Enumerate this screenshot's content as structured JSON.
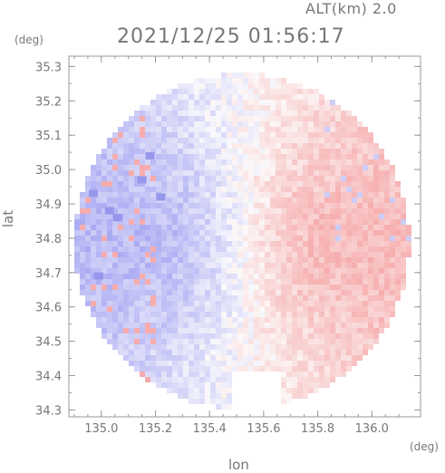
{
  "header": {
    "altitude": "ALT(km) 2.0",
    "datetime": "2021/12/25 01:56:17"
  },
  "units": {
    "y": "(deg)",
    "x": "(deg)"
  },
  "chart_data": {
    "type": "heatmap",
    "title": "",
    "xlabel": "lon",
    "ylabel": "lat",
    "xlim": [
      134.88,
      136.18
    ],
    "ylim": [
      34.28,
      35.33
    ],
    "x_ticks": [
      135.0,
      135.2,
      135.4,
      135.6,
      135.8,
      136.0
    ],
    "x_tick_labels": [
      "135.0",
      "135.2",
      "135.4",
      "135.6",
      "135.8",
      "136.0"
    ],
    "y_ticks": [
      34.3,
      34.4,
      34.5,
      34.6,
      34.7,
      34.8,
      34.9,
      35.0,
      35.1,
      35.2,
      35.3
    ],
    "y_tick_labels": [
      "34.3",
      "34.4",
      "34.5",
      "34.6",
      "34.7",
      "34.8",
      "34.9",
      "35.0",
      "35.1",
      "35.2",
      "35.3"
    ],
    "grid": false,
    "colors": {
      "approaching": "#8c8cf0",
      "zero": "#f8f8fc",
      "receding": "#f48c8c",
      "axis": "#999999"
    },
    "field": {
      "radar_center": [
        135.52,
        34.79
      ],
      "radius_deg": 0.62,
      "description_of_pattern": "negative (blue) west of radar, positive (red) east"
    }
  }
}
